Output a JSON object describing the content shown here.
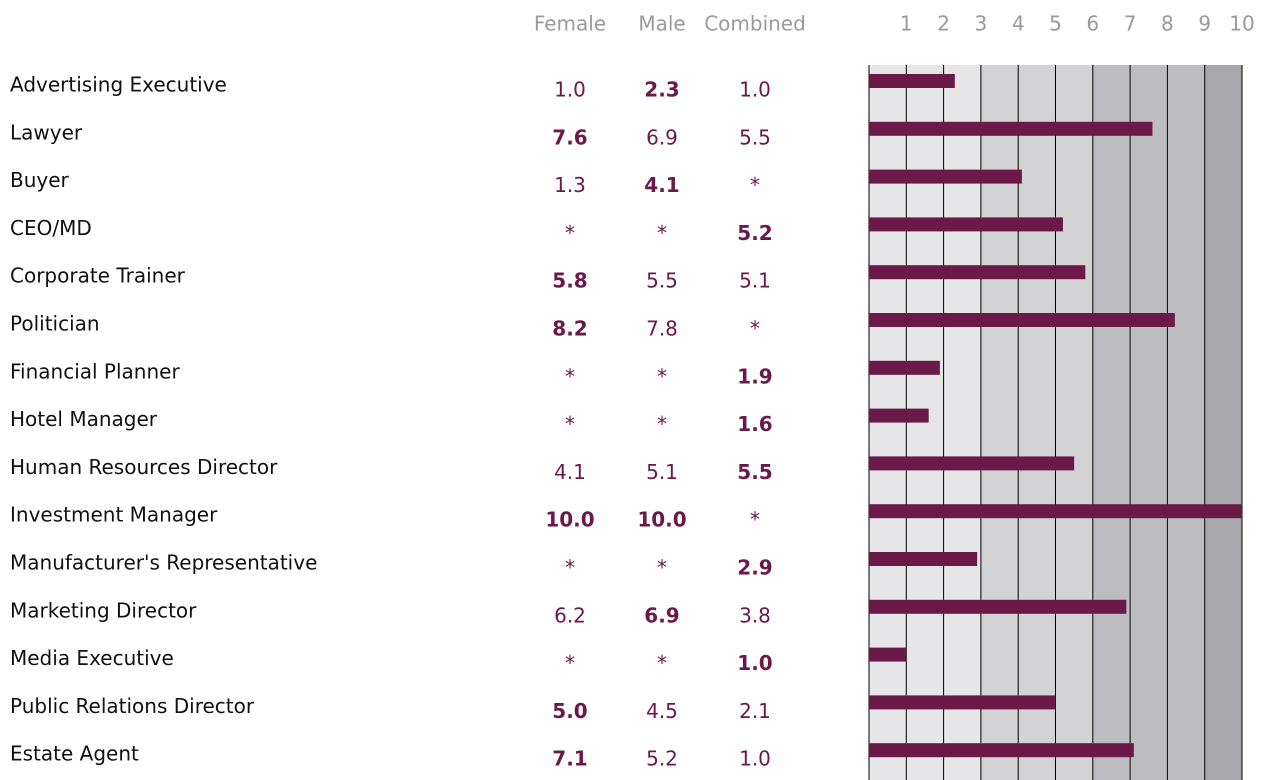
{
  "headers": [
    "Female",
    "Male",
    "Combined"
  ],
  "scale": {
    "xlim": [
      0,
      10
    ],
    "xticks": [
      1,
      2,
      3,
      4,
      5,
      6,
      7,
      8,
      9,
      10
    ],
    "color": "#6b1a48"
  },
  "rows": [
    {
      "label": "Advertising Executive",
      "cells": [
        "1.0",
        "2.3",
        "1.0"
      ],
      "bold": 1,
      "bar": 2.3
    },
    {
      "label": "Lawyer",
      "cells": [
        "7.6",
        "6.9",
        "5.5"
      ],
      "bold": 0,
      "bar": 7.6
    },
    {
      "label": "Buyer",
      "cells": [
        "1.3",
        "4.1",
        "*"
      ],
      "bold": 1,
      "bar": 4.1
    },
    {
      "label": "CEO/MD",
      "cells": [
        "*",
        "*",
        "5.2"
      ],
      "bold": 2,
      "bar": 5.2
    },
    {
      "label": "Corporate Trainer",
      "cells": [
        "5.8",
        "5.5",
        "5.1"
      ],
      "bold": 0,
      "bar": 5.8
    },
    {
      "label": "Politician",
      "cells": [
        "8.2",
        "7.8",
        "*"
      ],
      "bold": 0,
      "bar": 8.2
    },
    {
      "label": "Financial Planner",
      "cells": [
        "*",
        "*",
        "1.9"
      ],
      "bold": 2,
      "bar": 1.9
    },
    {
      "label": "Hotel Manager",
      "cells": [
        "*",
        "*",
        "1.6"
      ],
      "bold": 2,
      "bar": 1.6
    },
    {
      "label": "Human Resources Director",
      "cells": [
        "4.1",
        "5.1",
        "5.5"
      ],
      "bold": 2,
      "bar": 5.5
    },
    {
      "label": "Investment Manager",
      "cells": [
        "10.0",
        "10.0",
        "*"
      ],
      "bold": [
        0,
        1
      ],
      "bar": 10
    },
    {
      "label": "Manufacturer's Representative",
      "cells": [
        "*",
        "*",
        "2.9"
      ],
      "bold": 2,
      "bar": 2.9
    },
    {
      "label": "Marketing Director",
      "cells": [
        "6.2",
        "6.9",
        "3.8"
      ],
      "bold": 1,
      "bar": 6.9
    },
    {
      "label": "Media Executive",
      "cells": [
        "*",
        "*",
        "1.0"
      ],
      "bold": 2,
      "bar": 1.0
    },
    {
      "label": "Public Relations Director",
      "cells": [
        "5.0",
        "4.5",
        "2.1"
      ],
      "bold": 0,
      "bar": 5.0
    },
    {
      "label": "Estate Agent",
      "cells": [
        "7.1",
        "5.2",
        "1.0"
      ],
      "bold": 0,
      "bar": 7.1
    }
  ]
}
